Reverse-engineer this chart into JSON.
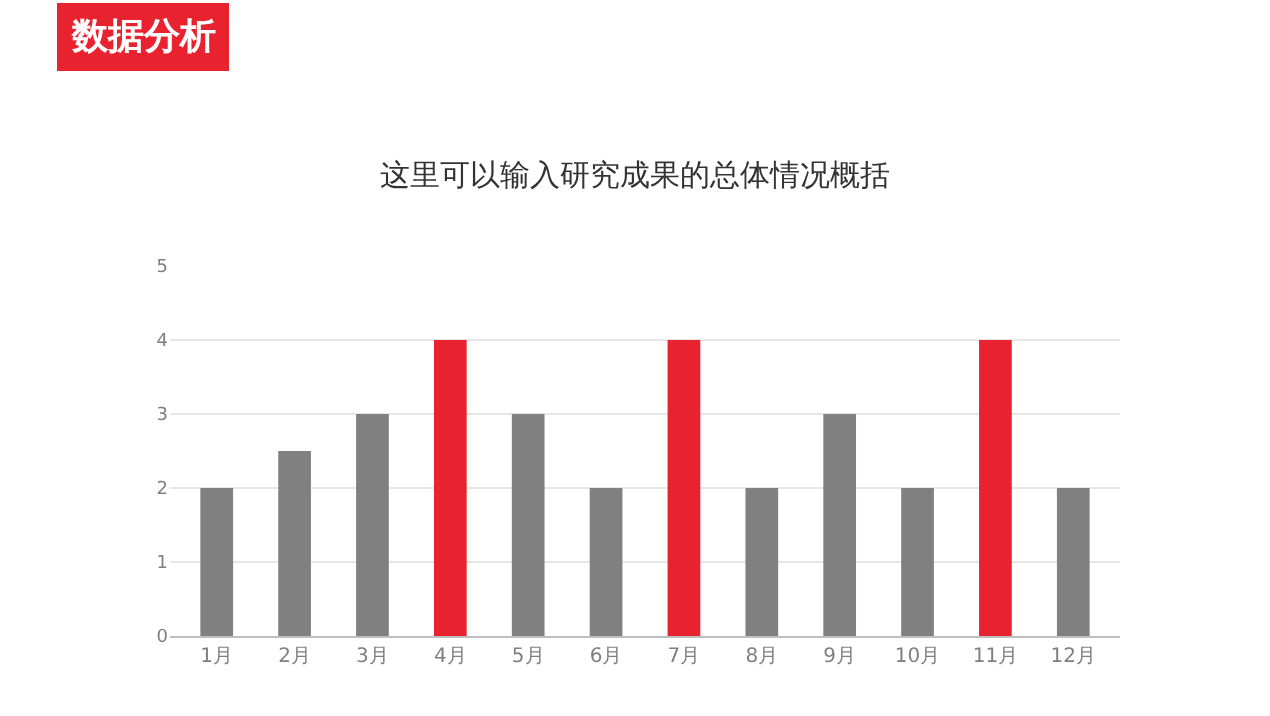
{
  "chart_data": {
    "type": "bar",
    "title": "这里可以输入研究成果的总体情况概括",
    "annotations": [
      "数据分析"
    ],
    "categories": [
      "1月",
      "2月",
      "3月",
      "4月",
      "5月",
      "6月",
      "7月",
      "8月",
      "9月",
      "10月",
      "11月",
      "12月"
    ],
    "values": [
      2,
      2.5,
      3,
      4,
      3,
      2,
      4,
      2,
      3,
      2,
      4,
      2
    ],
    "colors": [
      "#808080",
      "#808080",
      "#808080",
      "#e8232f",
      "#808080",
      "#808080",
      "#e8232f",
      "#808080",
      "#808080",
      "#808080",
      "#e8232f",
      "#808080"
    ],
    "ylim": [
      0,
      5
    ],
    "yticks": [
      0,
      1,
      2,
      3,
      4,
      5
    ],
    "grid": "y"
  }
}
